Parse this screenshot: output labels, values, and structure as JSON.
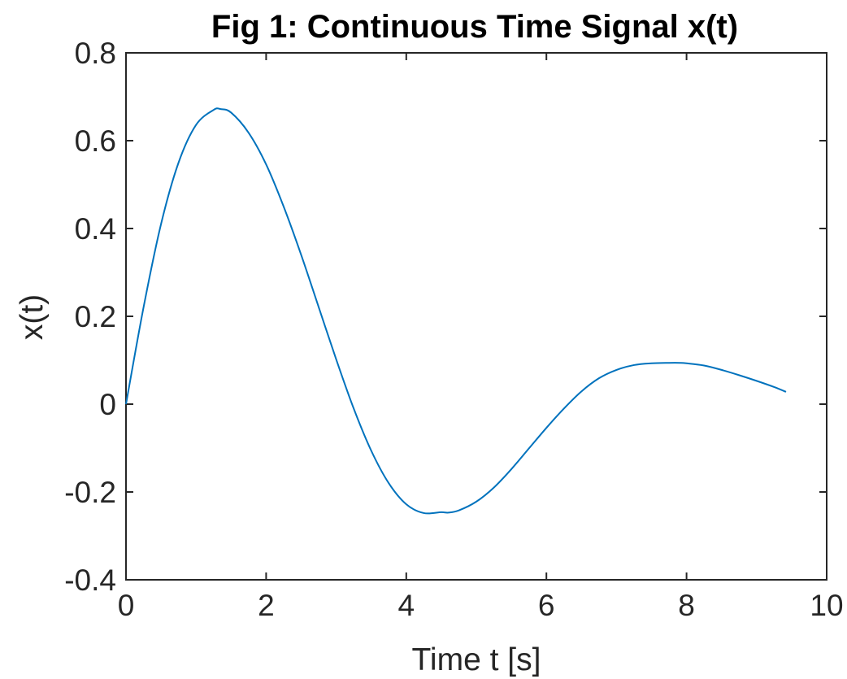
{
  "chart_data": {
    "type": "line",
    "title": "Fig 1: Continuous Time Signal x(t)",
    "xlabel": "Time t [s]",
    "ylabel": "x(t)",
    "xlim": [
      0,
      10
    ],
    "ylim": [
      -0.4,
      0.8
    ],
    "xticks": [
      0,
      2,
      4,
      6,
      8,
      10
    ],
    "xtick_labels": [
      "0",
      "2",
      "4",
      "6",
      "8",
      "10"
    ],
    "yticks": [
      -0.4,
      -0.2,
      0,
      0.2,
      0.4,
      0.6,
      0.8
    ],
    "ytick_labels": [
      "-0.4",
      "-0.2",
      "0",
      "0.2",
      "0.4",
      "0.6",
      "0.8"
    ],
    "grid": false,
    "legend": false,
    "series_color": "#0072BD",
    "series": [
      {
        "x": [
          0,
          0.25,
          0.5,
          0.75,
          1.0,
          1.25,
          1.35,
          1.5,
          1.75,
          2.0,
          2.25,
          2.5,
          2.75,
          3.0,
          3.25,
          3.5,
          3.75,
          4.0,
          4.25,
          4.5,
          4.6,
          4.75,
          5.0,
          5.25,
          5.5,
          5.75,
          6.0,
          6.25,
          6.5,
          6.75,
          7.0,
          7.25,
          7.5,
          7.75,
          7.9,
          8.0,
          8.25,
          8.5,
          8.75,
          9.0,
          9.25,
          9.42
        ],
        "y": [
          0,
          0.22,
          0.41,
          0.55,
          0.636,
          0.67,
          0.672,
          0.664,
          0.618,
          0.546,
          0.45,
          0.34,
          0.221,
          0.102,
          -0.01,
          -0.106,
          -0.18,
          -0.228,
          -0.248,
          -0.246,
          -0.247,
          -0.242,
          -0.222,
          -0.19,
          -0.148,
          -0.101,
          -0.054,
          -0.01,
          0.029,
          0.059,
          0.078,
          0.089,
          0.093,
          0.094,
          0.094,
          0.093,
          0.088,
          0.078,
          0.066,
          0.053,
          0.039,
          0.028
        ]
      }
    ]
  }
}
